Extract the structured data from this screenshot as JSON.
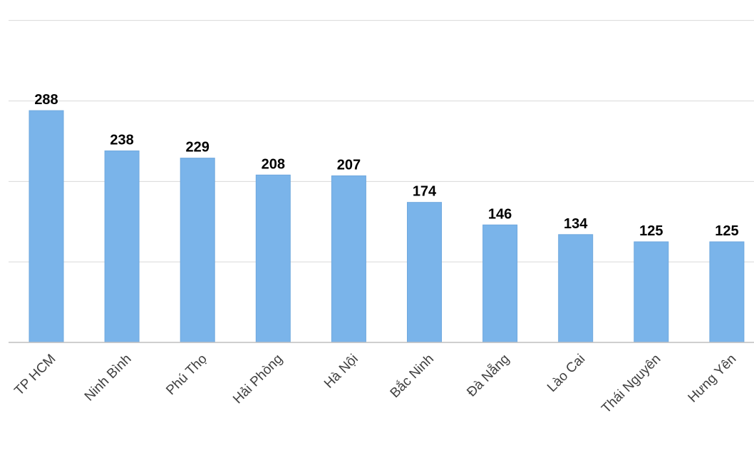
{
  "chart_data": {
    "type": "bar",
    "title": "",
    "xlabel": "",
    "ylabel": "",
    "categories": [
      "TP HCM",
      "Ninh Bình",
      "Phú Thọ",
      "Hải Phòng",
      "Hà Nội",
      "Bắc Ninh",
      "Đà Nẵng",
      "Lào Cai",
      "Thái Nguyên",
      "Hưng Yên"
    ],
    "values": [
      288,
      238,
      229,
      208,
      207,
      174,
      146,
      134,
      125,
      125
    ],
    "ylim": [
      0,
      400
    ],
    "grid": true,
    "legend": "none",
    "data_labels": true,
    "colors": {
      "bar": "#7ab4ea",
      "grid": "#d9d9d9",
      "axis": "#bfbfbf",
      "value_text": "#000000",
      "category_text": "#404040"
    }
  }
}
